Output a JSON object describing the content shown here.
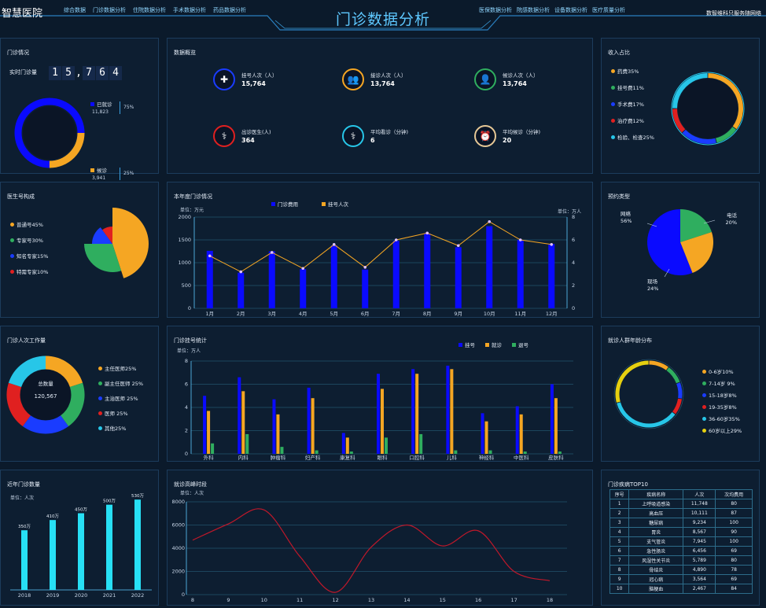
{
  "header": {
    "brand": "智慧医院",
    "title": "门诊数据分析",
    "user": "数智维科只服务随网络",
    "nav_left": [
      "综合数据",
      "门诊数据分析",
      "住院数据分析",
      "手术数据分析",
      "药品数据分析"
    ],
    "nav_right": [
      "医保数据分析",
      "院感数据分析",
      "设备数据分析",
      "医疗质量分析"
    ]
  },
  "outpatient": {
    "title": "门诊情况",
    "realtime_label": "实时门诊量",
    "digits": [
      "1",
      "5",
      ",",
      "7",
      "6",
      "4"
    ],
    "items": [
      {
        "label": "已就诊",
        "value": "11,823",
        "pct": "75%",
        "color": "#0a0aff"
      },
      {
        "label": "候诊",
        "value": "3,941",
        "pct": "25%",
        "color": "#f5a623"
      }
    ],
    "fractions": [
      0.75,
      0.25
    ]
  },
  "overview": {
    "title": "数据概览",
    "items": [
      {
        "label": "挂号人次（人）",
        "value": "15,764",
        "icon": "plus-icon",
        "color": "#1a3cff"
      },
      {
        "label": "接诊人次（人）",
        "value": "13,764",
        "icon": "group-icon",
        "color": "#f5a623"
      },
      {
        "label": "候诊人次（人）",
        "value": "13,764",
        "icon": "person-icon",
        "color": "#2fae5f"
      },
      {
        "label": "出诊医生(人)",
        "value": "364",
        "icon": "doctor-icon",
        "color": "#e02020"
      },
      {
        "label": "平均看诊（分钟)",
        "value": "6",
        "icon": "stethoscope-icon",
        "color": "#27c6e8"
      },
      {
        "label": "平均候诊（分钟)",
        "value": "20",
        "icon": "clock-icon",
        "color": "#e6c896"
      }
    ]
  },
  "income": {
    "title": "收入占比",
    "items": [
      {
        "label": "药费35%",
        "value": 35,
        "color": "#f5a623"
      },
      {
        "label": "挂号费11%",
        "value": 11,
        "color": "#2fae5f"
      },
      {
        "label": "手术费17%",
        "value": 17,
        "color": "#1a3cff"
      },
      {
        "label": "治疗费12%",
        "value": 12,
        "color": "#e02020"
      },
      {
        "label": "检验、检查25%",
        "value": 25,
        "color": "#27c6e8"
      }
    ]
  },
  "doctor_mix": {
    "title": "医生号构成",
    "items": [
      {
        "label": "普通号45%",
        "value": 45,
        "color": "#f5a623"
      },
      {
        "label": "专家号30%",
        "value": 30,
        "color": "#2fae5f"
      },
      {
        "label": "知名专家15%",
        "value": 15,
        "color": "#1a3cff"
      },
      {
        "label": "特需专家10%",
        "value": 10,
        "color": "#e02020"
      }
    ]
  },
  "chart_data": [
    {
      "id": "annual",
      "type": "bar",
      "title": "本年度门诊情况",
      "unit_left": "单位：万元",
      "unit_right": "单位：万人",
      "categories": [
        "1月",
        "2月",
        "3月",
        "4月",
        "5月",
        "6月",
        "7月",
        "8月",
        "9月",
        "10月",
        "11月",
        "12月"
      ],
      "series": [
        {
          "name": "门诊费用",
          "type": "bar",
          "color": "#0a0aff",
          "values": [
            1260,
            780,
            1250,
            860,
            1380,
            850,
            1480,
            1640,
            1340,
            1800,
            1500,
            1410
          ]
        },
        {
          "name": "挂号人次",
          "type": "line",
          "color": "#f5a623",
          "axis": "right",
          "values": [
            4.6,
            3.2,
            4.9,
            3.5,
            5.6,
            3.6,
            6.0,
            6.6,
            5.5,
            7.6,
            6.0,
            5.6
          ]
        }
      ],
      "ylim": [
        0,
        2000
      ],
      "yticks": [
        0,
        500,
        1000,
        1500,
        2000
      ],
      "y2lim": [
        0,
        8
      ],
      "y2ticks": [
        0,
        2,
        4,
        6,
        8
      ]
    },
    {
      "id": "registration",
      "type": "bar",
      "title": "门诊挂号统计",
      "unit": "单位：万人",
      "categories": [
        "外科",
        "内科",
        "肿瘤科",
        "妇产科",
        "康复科",
        "眼科",
        "口腔科",
        "儿科",
        "神经科",
        "中医科",
        "皮肤科"
      ],
      "series": [
        {
          "name": "挂号",
          "color": "#0a0aff",
          "values": [
            5.0,
            6.6,
            4.7,
            5.7,
            1.8,
            6.9,
            7.3,
            7.6,
            3.5,
            4.1,
            6.0
          ]
        },
        {
          "name": "就诊",
          "color": "#f5a623",
          "values": [
            3.7,
            5.4,
            3.4,
            4.8,
            1.4,
            5.6,
            6.9,
            7.3,
            2.8,
            3.4,
            4.8
          ]
        },
        {
          "name": "退号",
          "color": "#2fae5f",
          "values": [
            0.9,
            1.7,
            0.6,
            0.3,
            0.2,
            1.4,
            1.7,
            0.3,
            0.3,
            0.2,
            0.2
          ]
        }
      ],
      "ylim": [
        0,
        8
      ],
      "yticks": [
        0,
        2,
        4,
        6,
        8
      ]
    },
    {
      "id": "yearly",
      "type": "bar",
      "title": "近年门诊数量",
      "unit": "单位：人次",
      "categories": [
        "2018",
        "2019",
        "2020",
        "2021",
        "2022"
      ],
      "values": [
        350,
        410,
        450,
        500,
        530
      ],
      "data_labels": [
        "350万",
        "410万",
        "450万",
        "500万",
        "530万"
      ],
      "ylim": [
        0,
        600
      ],
      "color": "#27e0f5"
    },
    {
      "id": "time",
      "type": "line",
      "title": "就诊高峰时段",
      "unit": "单位：人次",
      "x": [
        8,
        9,
        10,
        11,
        12,
        13,
        14,
        15,
        16,
        17,
        18
      ],
      "xticks": [
        "8",
        "9",
        "10",
        "11",
        "12",
        "13",
        "14",
        "15",
        "16",
        "17",
        "18"
      ],
      "values": [
        4700,
        6100,
        7300,
        3300,
        200,
        4100,
        6000,
        4200,
        5500,
        2000,
        1200
      ],
      "ylim": [
        0,
        8000
      ],
      "yticks": [
        0,
        2000,
        4000,
        6000,
        8000
      ],
      "color": "#c0182a"
    }
  ],
  "booking": {
    "title": "预约类型",
    "items": [
      {
        "label": "网络",
        "pct": "56%",
        "value": 56,
        "color": "#0a0aff"
      },
      {
        "label": "电话",
        "pct": "20%",
        "value": 20,
        "color": "#2fae5f"
      },
      {
        "label": "现场",
        "pct": "24%",
        "value": 24,
        "color": "#f5a623"
      }
    ]
  },
  "workload": {
    "title": "门诊人次工作量",
    "center_label": "总数量",
    "center_value": "120,567",
    "items": [
      {
        "label": "主任医师25%",
        "value": 25,
        "color": "#f5a623"
      },
      {
        "label": "副主任医师 25%",
        "value": 25,
        "color": "#2fae5f"
      },
      {
        "label": "主治医师 25%",
        "value": 25,
        "color": "#1a3cff"
      },
      {
        "label": "医师 25%",
        "value": 25,
        "color": "#e02020"
      },
      {
        "label": "其他25%",
        "value": 25,
        "color": "#27c6e8"
      }
    ]
  },
  "age": {
    "title": "就诊人群年龄分布",
    "items": [
      {
        "label": "0-6岁10%",
        "value": 10,
        "color": "#f5a623"
      },
      {
        "label": "7-14岁 9%",
        "value": 9,
        "color": "#2fae5f"
      },
      {
        "label": "15-18岁8%",
        "value": 8,
        "color": "#1a3cff"
      },
      {
        "label": "19-35岁8%",
        "value": 8,
        "color": "#e02020"
      },
      {
        "label": "36-60岁35%",
        "value": 35,
        "color": "#27c6e8"
      },
      {
        "label": "60岁以上29%",
        "value": 29,
        "color": "#e6d010"
      }
    ]
  },
  "disease": {
    "title": "门诊疾病TOP10",
    "columns": [
      "序号",
      "疾病名称",
      "人次",
      "次均费用"
    ],
    "rows": [
      [
        "1",
        "上呼吸道感染",
        "11,748",
        "80"
      ],
      [
        "2",
        "高血压",
        "10,111",
        "87"
      ],
      [
        "3",
        "糖尿病",
        "9,234",
        "100"
      ],
      [
        "4",
        "胃炎",
        "8,567",
        "90"
      ],
      [
        "5",
        "支气管炎",
        "7,945",
        "100"
      ],
      [
        "6",
        "急性肠炎",
        "6,456",
        "69"
      ],
      [
        "7",
        "风湿性关节炎",
        "5,789",
        "80"
      ],
      [
        "8",
        "骨结炎",
        "4,890",
        "78"
      ],
      [
        "9",
        "冠心病",
        "3,564",
        "69"
      ],
      [
        "10",
        "脑梗血",
        "2,467",
        "84"
      ]
    ]
  }
}
